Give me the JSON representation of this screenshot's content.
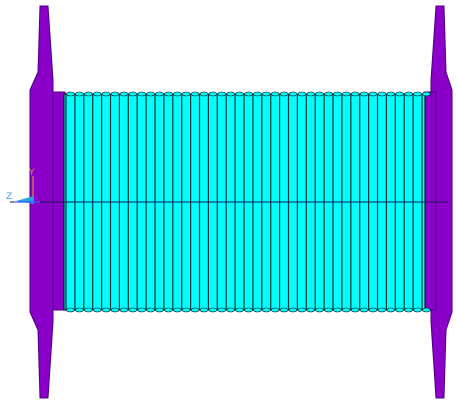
{
  "viewport": {
    "background": "#ffffff"
  },
  "model": {
    "drum": {
      "fill_color": "#00ffff",
      "groove_color": "#003333",
      "outline_color": "#000000"
    },
    "flange": {
      "fill_color": "#8a00c8",
      "edge_color": "#4b0082"
    },
    "centerline_color": "#1a1a5a"
  },
  "triad": {
    "y_label": "Y",
    "z_label": "Z",
    "y_color": "#d98c3a",
    "z_color": "#2aa0e0",
    "x_color": "#3060ff"
  }
}
